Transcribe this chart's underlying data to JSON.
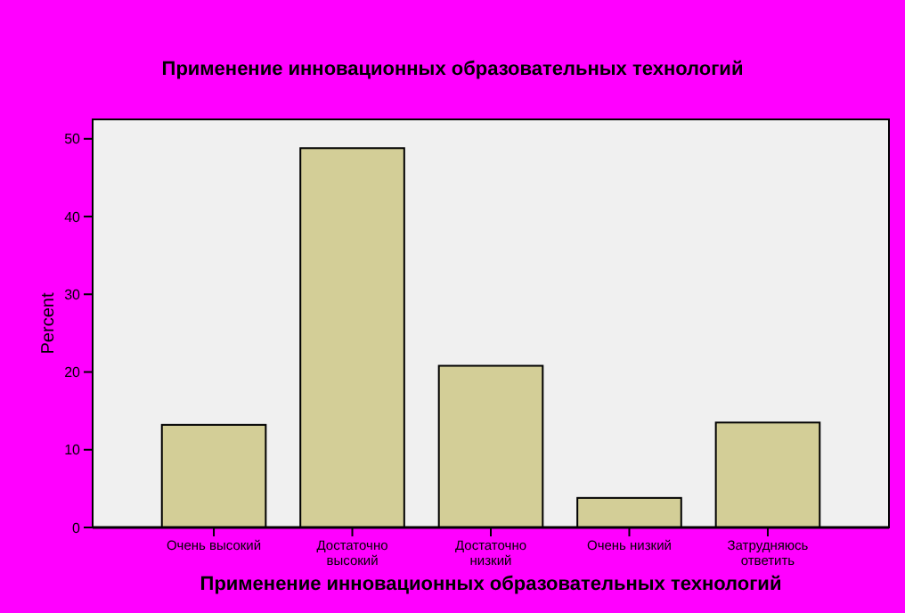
{
  "chart_data": {
    "type": "bar",
    "title": "Применение инновационных образовательных технологий",
    "xlabel": "Применение инновационных образовательных технологий",
    "ylabel": "Percent",
    "categories": [
      "Очень высокий",
      "Достаточно высокий",
      "Достаточно низкий",
      "Очень низкий",
      "Затрудняюсь ответить"
    ],
    "values": [
      13.2,
      48.8,
      20.8,
      3.8,
      13.5
    ],
    "color": "#d3ce97",
    "ylim": [
      0,
      52.5
    ],
    "yticks": [
      0,
      10,
      20,
      30,
      40,
      50
    ],
    "grid": false
  }
}
